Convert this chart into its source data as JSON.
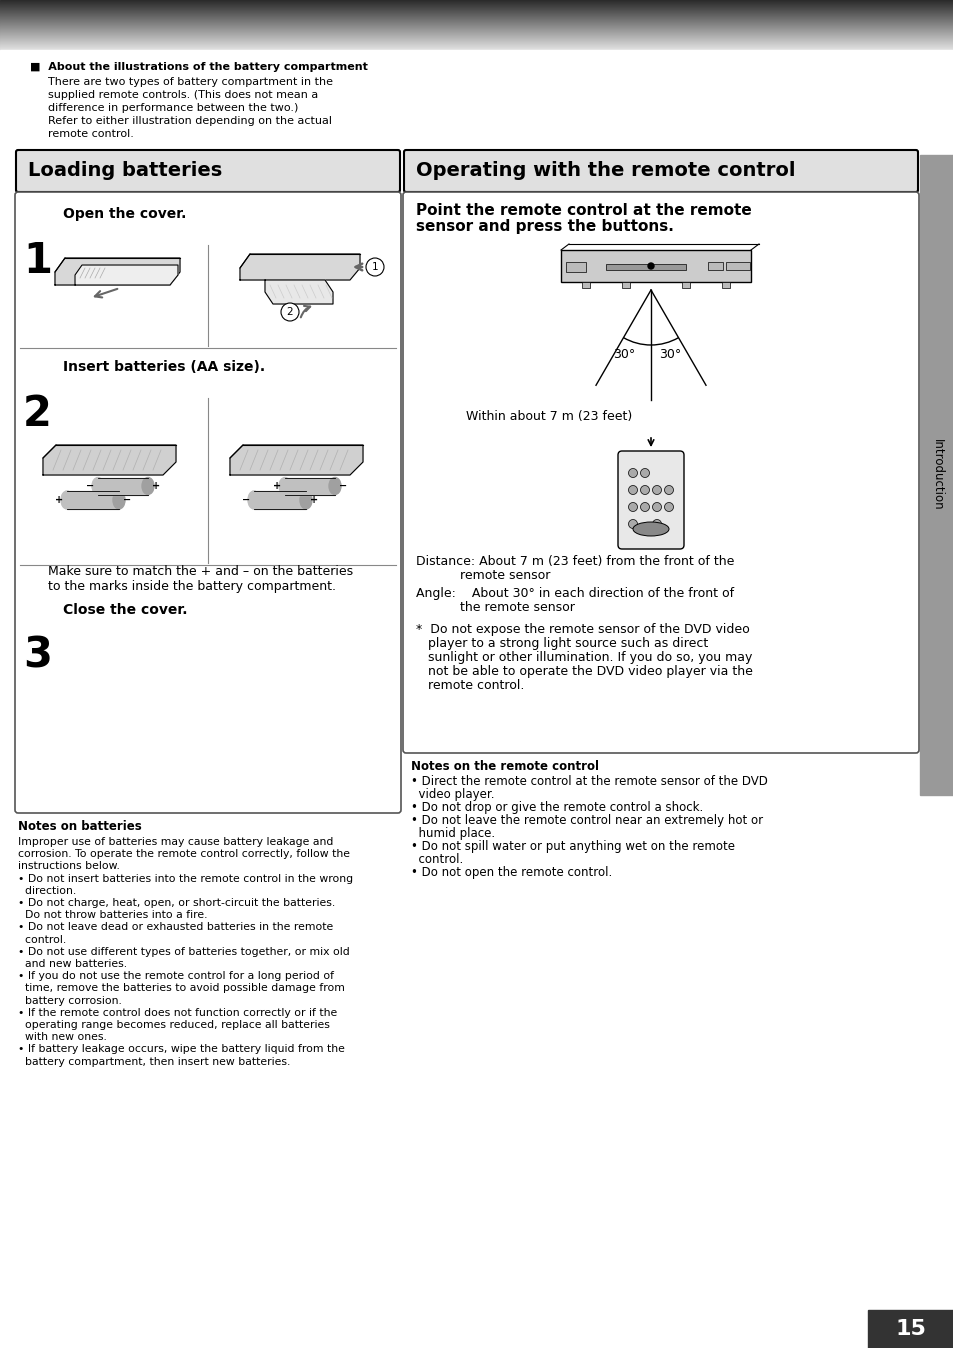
{
  "page_bg": "#ffffff",
  "title_lb": "Loading batteries",
  "title_op": "Operating with the remote control",
  "intro_bold": "About the illustrations of the battery compartment",
  "intro_text": [
    "There are two types of battery compartment in the",
    "supplied remote controls. (This does not mean a",
    "difference in performance between the two.)",
    "Refer to either illustration depending on the actual",
    "remote control."
  ],
  "step1_text": "Open the cover.",
  "step2_text": "Insert batteries (AA size).",
  "step2_note": "Make sure to match the + and – on the batteries\nto the marks inside the battery compartment.",
  "step3_text": "Close the cover.",
  "notes_batt_title": "Notes on batteries",
  "notes_batt_lines": [
    "Improper use of batteries may cause battery leakage and",
    "corrosion. To operate the remote control correctly, follow the",
    "instructions below.",
    "• Do not insert batteries into the remote control in the wrong",
    "  direction.",
    "• Do not charge, heat, open, or short-circuit the batteries.",
    "  Do not throw batteries into a fire.",
    "• Do not leave dead or exhausted batteries in the remote",
    "  control.",
    "• Do not use different types of batteries together, or mix old",
    "  and new batteries.",
    "• If you do not use the remote control for a long period of",
    "  time, remove the batteries to avoid possible damage from",
    "  battery corrosion.",
    "• If the remote control does not function correctly or if the",
    "  operating range becomes reduced, replace all batteries",
    "  with new ones.",
    "• If battery leakage occurs, wipe the battery liquid from the",
    "  battery compartment, then insert new batteries."
  ],
  "remote_title1": "Point the remote control at the remote",
  "remote_title2": "sensor and press the buttons.",
  "within_text": "Within about 7 m (23 feet)",
  "dist_line1": "Distance: About 7 m (23 feet) from the front of the",
  "dist_line2": "           remote sensor",
  "angle_line1": "Angle:    About 30° in each direction of the front of",
  "angle_line2": "           the remote sensor",
  "star_lines": [
    "*  Do not expose the remote sensor of the DVD video",
    "   player to a strong light source such as direct",
    "   sunlight or other illumination. If you do so, you may",
    "   not be able to operate the DVD video player via the",
    "   remote control."
  ],
  "notes_rc_title": "Notes on the remote control",
  "notes_rc_lines": [
    "• Direct the remote control at the remote sensor of the DVD",
    "  video player.",
    "• Do not drop or give the remote control a shock.",
    "• Do not leave the remote control near an extremely hot or",
    "  humid place.",
    "• Do not spill water or put anything wet on the remote",
    "  control.",
    "• Do not open the remote control."
  ],
  "page_num": "15",
  "intro_label": "Introduction",
  "header_grad_top": "#2a2a2a",
  "header_grad_bot": "#d0d0d0",
  "sidebar_color": "#999999",
  "title_box_color": "#e0e0e0",
  "steps_box_color": "#ffffff",
  "remote_box_color": "#ffffff"
}
